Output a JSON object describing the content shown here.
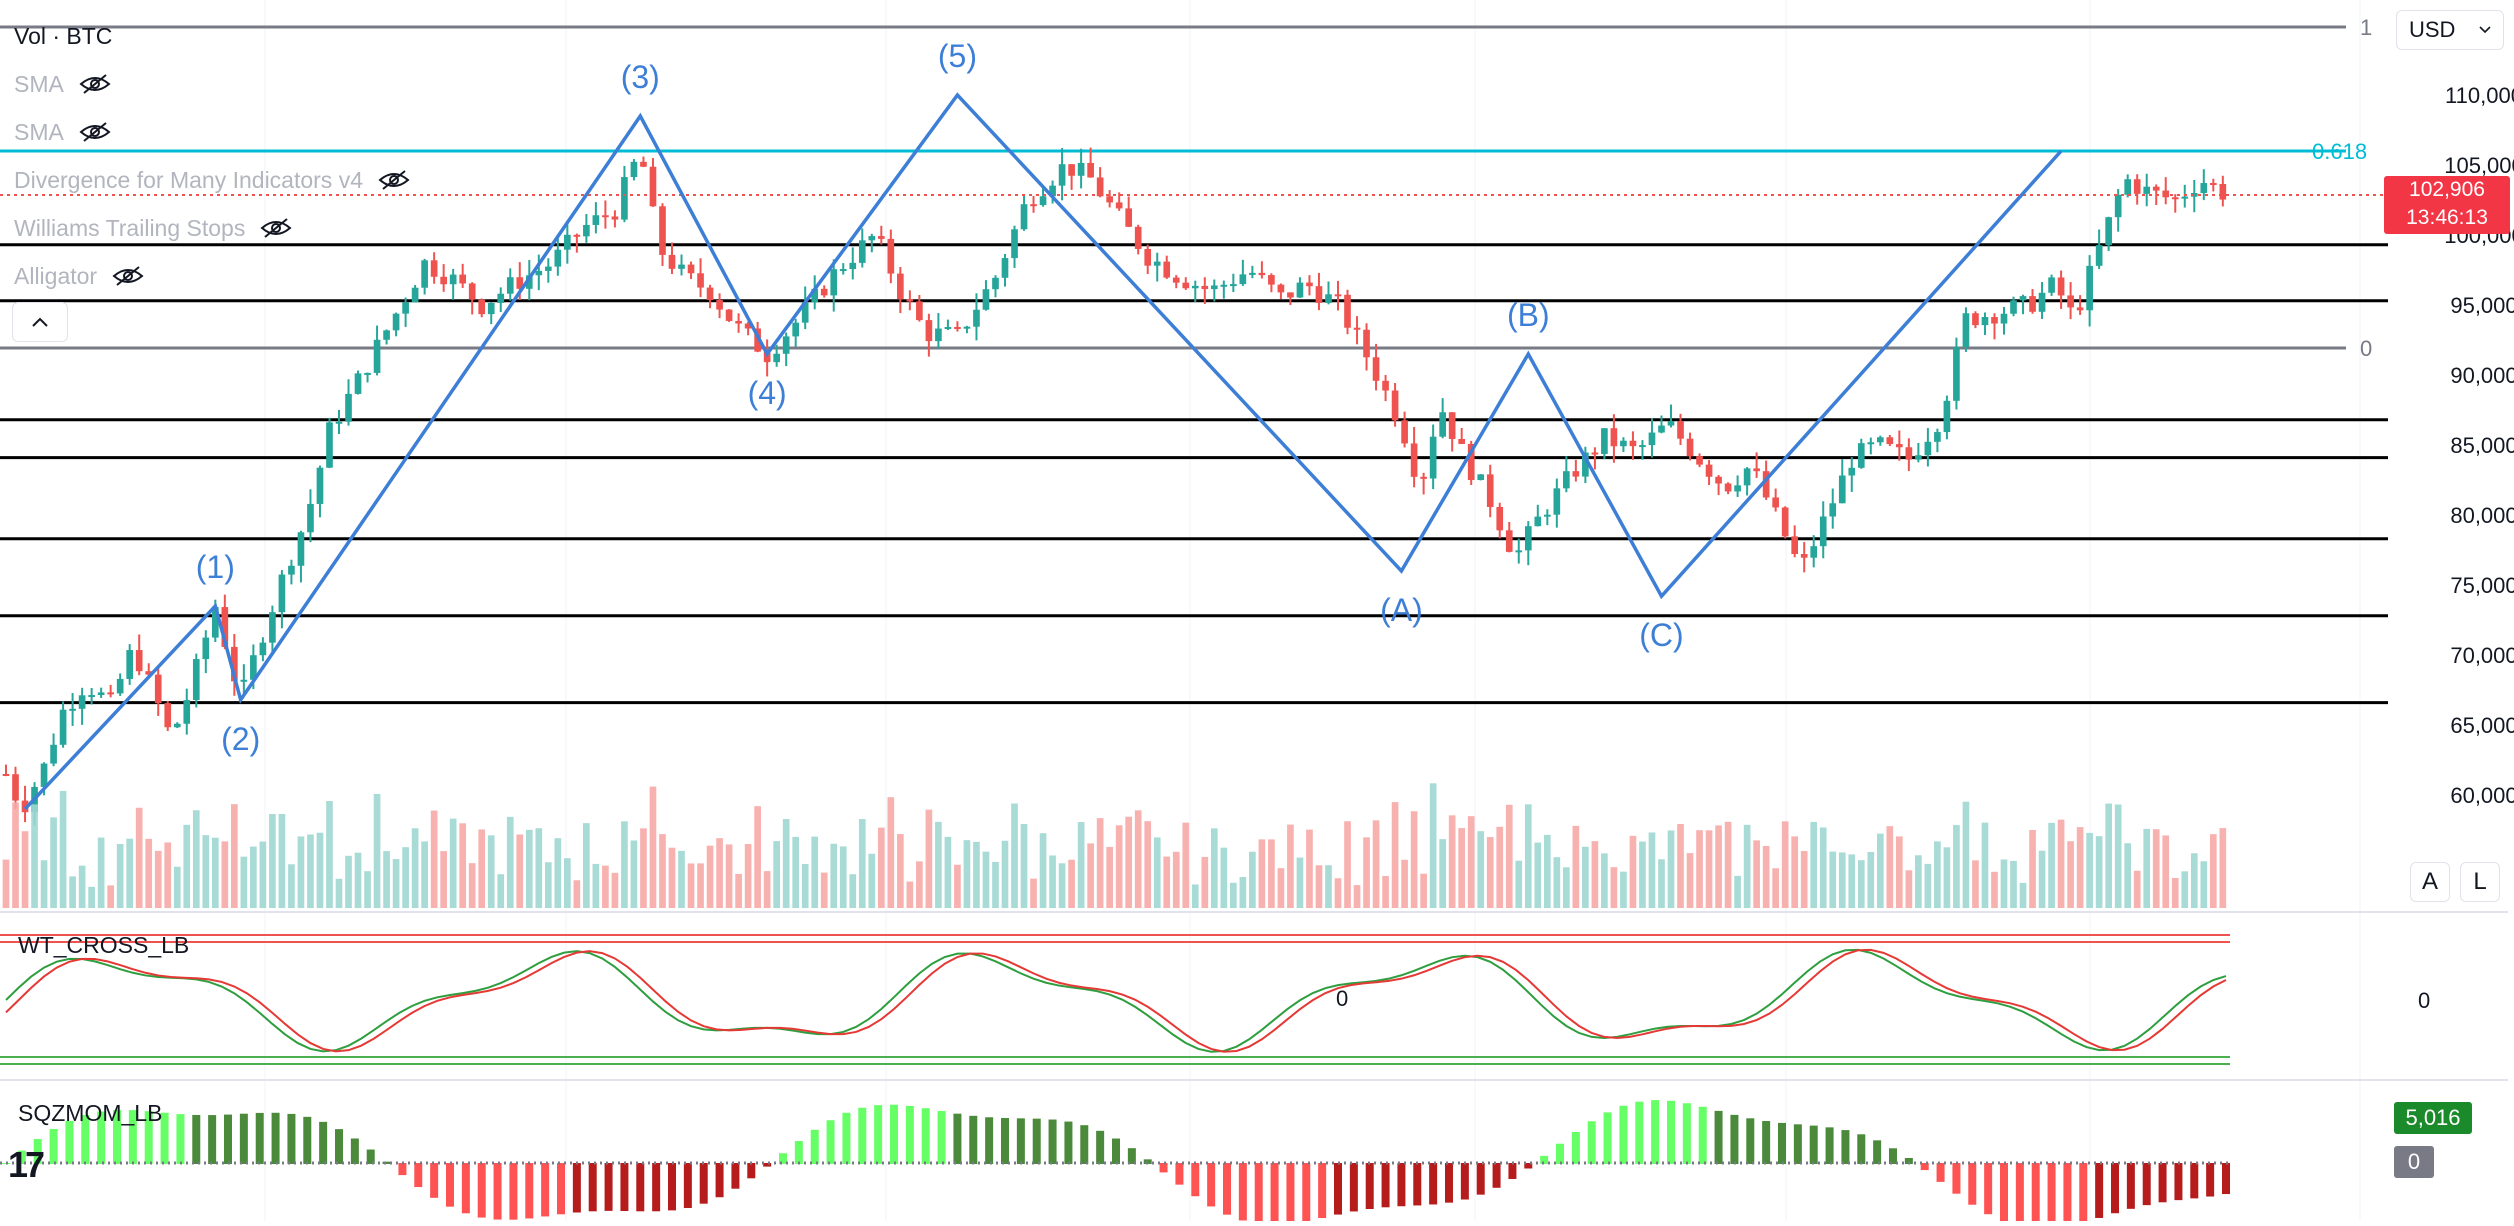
{
  "chart_data": {
    "type": "candlestick",
    "symbol_legend": "Vol · BTC",
    "currency": "USD",
    "indicators": [
      {
        "name": "SMA",
        "hidden": true
      },
      {
        "name": "SMA",
        "hidden": true
      },
      {
        "name": "Divergence for Many Indicators v4",
        "hidden": true
      },
      {
        "name": "Williams Trailing Stops",
        "hidden": true
      },
      {
        "name": "Alligator",
        "hidden": true
      }
    ],
    "y_axis": {
      "scale": "linear",
      "ylim": [
        55000,
        112000
      ],
      "ticks": [
        "110,000",
        "105,000",
        "100,000",
        "95,000",
        "90,000",
        "85,000",
        "80,000",
        "75,000",
        "70,000",
        "65,000",
        "60,000"
      ]
    },
    "last_price": "102,906",
    "countdown": "13:46:13",
    "fib_levels": [
      {
        "label": "1",
        "price": 116000
      },
      {
        "label": "0.618",
        "price": 106000
      },
      {
        "label": "0",
        "price": 91800
      }
    ],
    "horizontal_lines": [
      99300,
      95300,
      86800,
      84100,
      78300,
      72800,
      66600
    ],
    "close_path": [
      [
        0,
        61500
      ],
      [
        5,
        59000
      ],
      [
        12,
        62000
      ],
      [
        18,
        66000
      ],
      [
        25,
        68000
      ],
      [
        33,
        66500
      ],
      [
        40,
        70500
      ],
      [
        47,
        67000
      ],
      [
        52,
        64000
      ],
      [
        58,
        67500
      ],
      [
        66,
        73500
      ],
      [
        74,
        66800
      ],
      [
        80,
        71000
      ],
      [
        88,
        76000
      ],
      [
        95,
        80000
      ],
      [
        102,
        86000
      ],
      [
        112,
        90000
      ],
      [
        122,
        94000
      ],
      [
        132,
        98000
      ],
      [
        140,
        97000
      ],
      [
        150,
        95000
      ],
      [
        160,
        96500
      ],
      [
        172,
        98000
      ],
      [
        182,
        100500
      ],
      [
        192,
        101800
      ],
      [
        200,
        106000
      ],
      [
        206,
        99000
      ],
      [
        214,
        97000
      ],
      [
        222,
        96000
      ],
      [
        230,
        93500
      ],
      [
        240,
        91500
      ],
      [
        250,
        94000
      ],
      [
        262,
        97500
      ],
      [
        274,
        100000
      ],
      [
        282,
        96000
      ],
      [
        290,
        93000
      ],
      [
        300,
        92800
      ],
      [
        312,
        97000
      ],
      [
        322,
        102500
      ],
      [
        334,
        105000
      ],
      [
        342,
        104000
      ],
      [
        350,
        101500
      ],
      [
        360,
        98500
      ],
      [
        370,
        97000
      ],
      [
        380,
        96000
      ],
      [
        392,
        97500
      ],
      [
        402,
        95500
      ],
      [
        410,
        96500
      ],
      [
        420,
        95000
      ],
      [
        430,
        91000
      ],
      [
        440,
        86500
      ],
      [
        446,
        82000
      ],
      [
        452,
        88000
      ],
      [
        460,
        84000
      ],
      [
        468,
        81000
      ],
      [
        476,
        77000
      ],
      [
        484,
        80000
      ],
      [
        494,
        83000
      ],
      [
        504,
        85500
      ],
      [
        514,
        84500
      ],
      [
        524,
        86500
      ],
      [
        534,
        84000
      ],
      [
        542,
        82000
      ],
      [
        550,
        83500
      ],
      [
        560,
        79000
      ],
      [
        566,
        76000
      ],
      [
        574,
        80000
      ],
      [
        582,
        84000
      ],
      [
        590,
        85000
      ],
      [
        600,
        84000
      ],
      [
        610,
        87000
      ],
      [
        618,
        94000
      ],
      [
        628,
        94500
      ],
      [
        638,
        95000
      ],
      [
        646,
        96500
      ],
      [
        652,
        94000
      ],
      [
        660,
        99000
      ],
      [
        668,
        104000
      ],
      [
        676,
        103000
      ],
      [
        684,
        102500
      ],
      [
        692,
        104000
      ],
      [
        700,
        102906
      ]
    ],
    "bar_count": 700,
    "wave_labels": [
      {
        "label": "(1)",
        "x": 66,
        "price": 73500
      },
      {
        "label": "(2)",
        "x": 74,
        "price": 66800
      },
      {
        "label": "(3)",
        "x": 200,
        "price": 108500
      },
      {
        "label": "(4)",
        "x": 240,
        "price": 91500
      },
      {
        "label": "(5)",
        "x": 300,
        "price": 110000
      },
      {
        "label": "(A)",
        "x": 440,
        "price": 76000
      },
      {
        "label": "(B)",
        "x": 480,
        "price": 91500
      },
      {
        "label": "(C)",
        "x": 522,
        "price": 74200
      }
    ],
    "wave_path": [
      [
        6,
        59000
      ],
      [
        66,
        73500
      ],
      [
        74,
        66800
      ],
      [
        200,
        108500
      ],
      [
        240,
        91500
      ],
      [
        300,
        110000
      ],
      [
        440,
        76000
      ],
      [
        480,
        91500
      ],
      [
        522,
        74200
      ],
      [
        648,
        106000
      ]
    ],
    "panes": [
      {
        "name": "WT_CROSS_LB",
        "zero_label": "0"
      },
      {
        "name": "SQZMOM_LB",
        "value": "5,016",
        "zero_value": "0"
      }
    ],
    "overlay_buttons": {
      "auto": "A",
      "log": "L"
    }
  },
  "colors": {
    "up": "#26a69a",
    "down": "#ef5350",
    "wave": "#3d7fd6",
    "fib": "#00bcd4",
    "grid_dark": "#000000"
  }
}
